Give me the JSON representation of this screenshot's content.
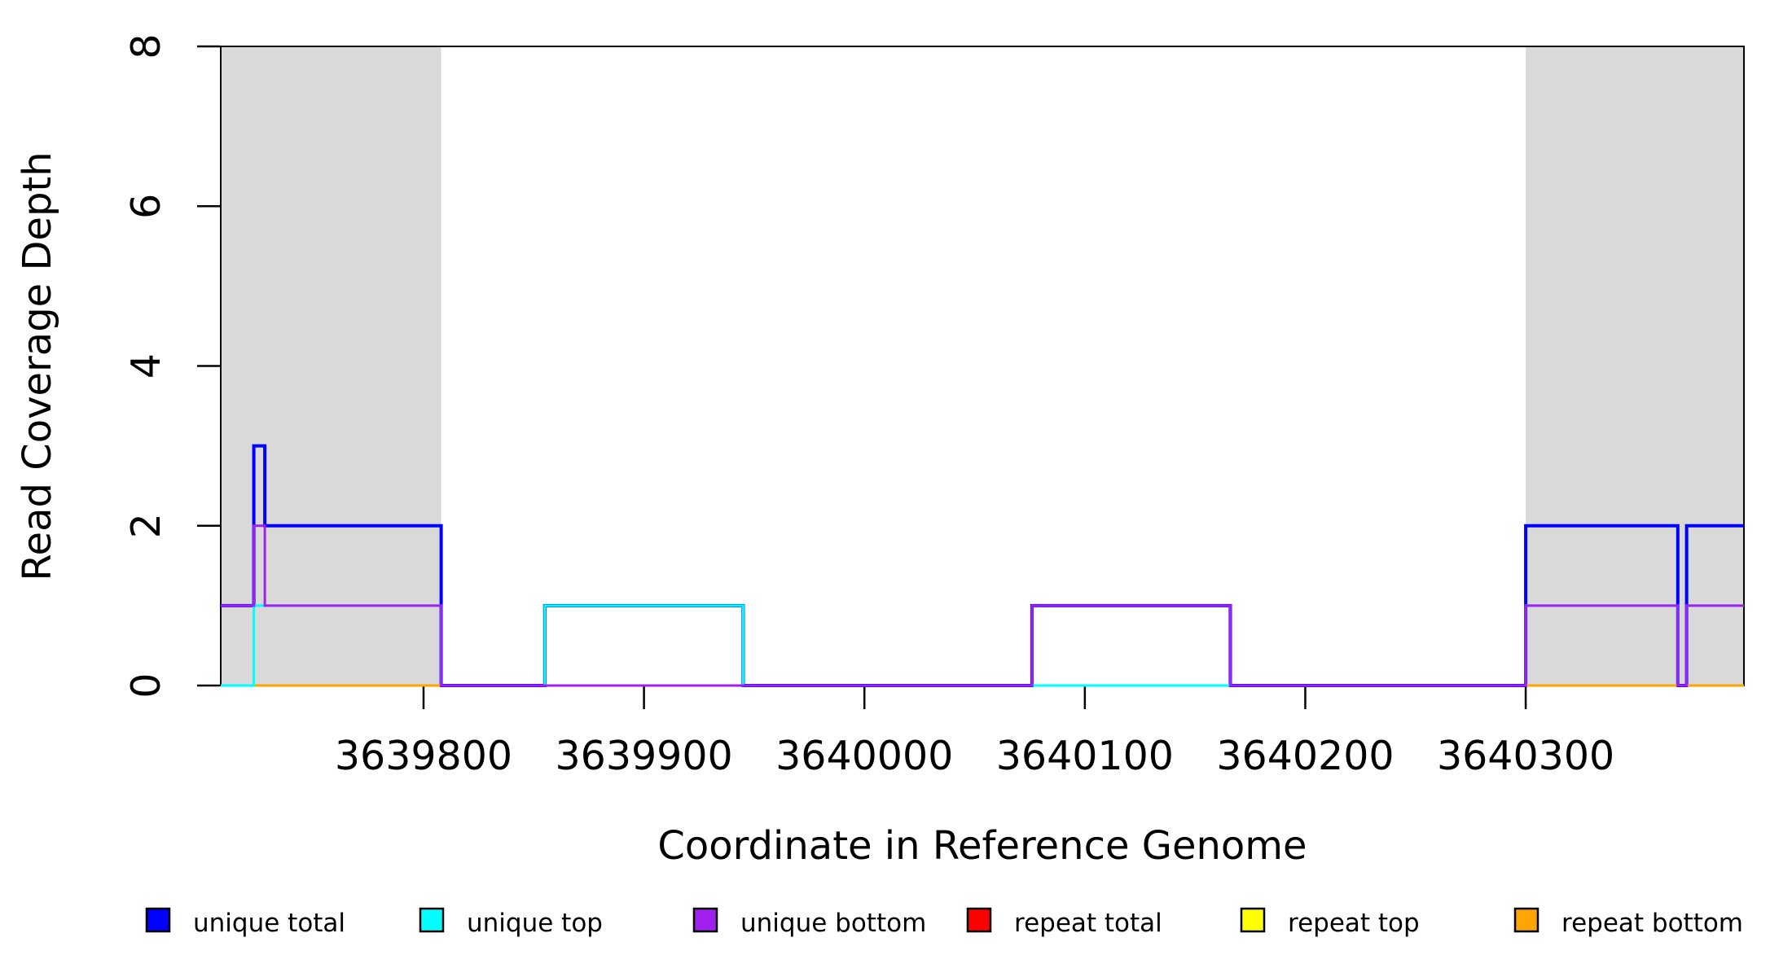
{
  "chart_data": {
    "type": "line",
    "title": "",
    "xlabel": "Coordinate in Reference Genome",
    "ylabel": "Read Coverage Depth",
    "xlim": [
      3639708,
      3640399
    ],
    "ylim": [
      0,
      8
    ],
    "grid": false,
    "legend_position": "bottom",
    "x_ticks": [
      {
        "value": 3639800,
        "label": "3639800"
      },
      {
        "value": 3639900,
        "label": "3639900"
      },
      {
        "value": 3640000,
        "label": "3640000"
      },
      {
        "value": 3640100,
        "label": "3640100"
      },
      {
        "value": 3640200,
        "label": "3640200"
      },
      {
        "value": 3640300,
        "label": "3640300"
      }
    ],
    "y_ticks": [
      {
        "value": 0,
        "label": "0"
      },
      {
        "value": 2,
        "label": "2"
      },
      {
        "value": 4,
        "label": "4"
      },
      {
        "value": 6,
        "label": "6"
      },
      {
        "value": 8,
        "label": "8"
      }
    ],
    "shaded_regions": [
      {
        "start": 3639708,
        "end": 3639808,
        "color": "#D9D9D9"
      },
      {
        "start": 3640300,
        "end": 3640399,
        "color": "#D9D9D9"
      }
    ],
    "series": [
      {
        "name": "unique total",
        "color": "#0000FF",
        "width": 4,
        "steps": [
          [
            3639708,
            3639723,
            1
          ],
          [
            3639723,
            3639728,
            3
          ],
          [
            3639728,
            3639808,
            2
          ],
          [
            3639808,
            3639855,
            0
          ],
          [
            3639855,
            3639945,
            1
          ],
          [
            3639945,
            3640076,
            0
          ],
          [
            3640076,
            3640166,
            1
          ],
          [
            3640166,
            3640300,
            0
          ],
          [
            3640300,
            3640369,
            2
          ],
          [
            3640369,
            3640373,
            0
          ],
          [
            3640373,
            3640399,
            2
          ]
        ]
      },
      {
        "name": "repeat top",
        "color": "#FFFF00",
        "width": 2.5,
        "steps": [
          [
            3639708,
            3640399,
            0
          ]
        ]
      },
      {
        "name": "repeat total",
        "color": "#FF0000",
        "width": 2.5,
        "steps": [
          [
            3639708,
            3640399,
            0
          ]
        ]
      },
      {
        "name": "repeat bottom",
        "color": "#FFA500",
        "width": 3,
        "steps": [
          [
            3639708,
            3640399,
            0
          ]
        ]
      },
      {
        "name": "unique top",
        "color": "#00FFFF",
        "width": 3,
        "steps": [
          [
            3639708,
            3639723,
            0
          ],
          [
            3639723,
            3639808,
            1
          ],
          [
            3639808,
            3639855,
            0
          ],
          [
            3639855,
            3639945,
            1
          ],
          [
            3639945,
            3640300,
            0
          ],
          [
            3640300,
            3640369,
            1
          ],
          [
            3640369,
            3640373,
            0
          ],
          [
            3640373,
            3640399,
            1
          ]
        ]
      },
      {
        "name": "unique bottom",
        "color": "#A020F0",
        "width": 3,
        "steps": [
          [
            3639708,
            3639723,
            1
          ],
          [
            3639723,
            3639728,
            2
          ],
          [
            3639728,
            3639808,
            1
          ],
          [
            3639808,
            3640076,
            0
          ],
          [
            3640076,
            3640166,
            1
          ],
          [
            3640166,
            3640300,
            0
          ],
          [
            3640300,
            3640369,
            1
          ],
          [
            3640369,
            3640373,
            0
          ],
          [
            3640373,
            3640399,
            1
          ]
        ]
      }
    ],
    "legend": [
      {
        "label": "unique total",
        "color": "#0000FF"
      },
      {
        "label": "unique top",
        "color": "#00FFFF"
      },
      {
        "label": "unique bottom",
        "color": "#A020F0"
      },
      {
        "label": "repeat total",
        "color": "#FF0000"
      },
      {
        "label": "repeat top",
        "color": "#FFFF00"
      },
      {
        "label": "repeat bottom",
        "color": "#FFA500"
      }
    ]
  }
}
